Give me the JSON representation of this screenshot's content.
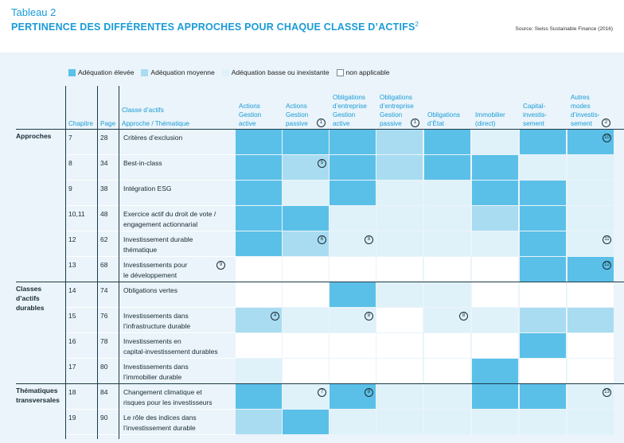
{
  "header": {
    "title": "Tableau 2",
    "subtitle": "PERTINENCE DES DIFFÉRENTES APPROCHES POUR CHAQUE CLASSE D’ACTIFS",
    "subtitle_note": "2",
    "source": "Source: Swiss Sustainable Finance (2016)"
  },
  "legend": [
    {
      "label": "Adéquation élevée",
      "color": "#5bc0e8"
    },
    {
      "label": "Adéquation moyenne",
      "color": "#a9dcf1"
    },
    {
      "label": "Adéquation basse ou inexistante",
      "color": "#dff1f9"
    },
    {
      "label": "non applicable",
      "color": "#ffffff"
    }
  ],
  "columns_left": {
    "chapitre": "Chapitre",
    "page": "Page",
    "classe": "Classe d’actifs",
    "approche": "Approche / Thématique"
  },
  "columns": [
    {
      "lines": [
        "Actions",
        "Gestion",
        "active"
      ],
      "note": ""
    },
    {
      "lines": [
        "Actions",
        "Gestion",
        "passive"
      ],
      "note": "1"
    },
    {
      "lines": [
        "Obligations",
        "d’entreprise",
        "Gestion",
        "active"
      ],
      "note": ""
    },
    {
      "lines": [
        "Obligations",
        "d’entreprise",
        "Gestion",
        "passive"
      ],
      "note": "1"
    },
    {
      "lines": [
        "Obligations",
        "d’État"
      ],
      "note": ""
    },
    {
      "lines": [
        "Immobilier",
        "(direct)"
      ],
      "note": ""
    },
    {
      "lines": [
        "Capital-",
        "investis-",
        "sement"
      ],
      "note": ""
    },
    {
      "lines": [
        "Autres",
        "modes",
        "d’investis-",
        "sement"
      ],
      "note": "2"
    }
  ],
  "sections": [
    {
      "label": [
        "Approches"
      ],
      "rows": [
        0,
        1,
        2,
        3,
        4,
        5
      ]
    },
    {
      "label": [
        "Classes",
        "d’actifs",
        "durables"
      ],
      "rows": [
        6,
        7,
        8,
        9
      ]
    },
    {
      "label": [
        "Thématiques",
        "transversales"
      ],
      "rows": [
        10,
        11
      ]
    }
  ],
  "rows": [
    {
      "chapitre": "7",
      "page": "28",
      "lines": [
        "Critères d’exclusion"
      ],
      "note": "",
      "cells": [
        "H",
        "H",
        "H",
        "M",
        "H",
        "L",
        "H",
        "H"
      ],
      "cell_notes": {
        "7": "10"
      }
    },
    {
      "chapitre": "8",
      "page": "34",
      "lines": [
        "Best-in-class"
      ],
      "note": "",
      "cells": [
        "H",
        "M",
        "H",
        "M",
        "H",
        "H",
        "L",
        "L"
      ],
      "cell_notes": {
        "1": "5"
      }
    },
    {
      "chapitre": "9",
      "page": "38",
      "lines": [
        "Intégration ESG"
      ],
      "note": "",
      "cells": [
        "H",
        "L",
        "H",
        "L",
        "L",
        "H",
        "H",
        "L"
      ],
      "cell_notes": {}
    },
    {
      "chapitre": "10,11",
      "page": "48",
      "lines": [
        "Exercice actif du droit de vote /",
        "engagement actionnarial"
      ],
      "note": "",
      "cells": [
        "H",
        "H",
        "L",
        "L",
        "L",
        "M",
        "H",
        "L"
      ],
      "cell_notes": {}
    },
    {
      "chapitre": "12",
      "page": "62",
      "lines": [
        "Investissement durable",
        "thématique"
      ],
      "note": "",
      "cells": [
        "H",
        "M",
        "L",
        "L",
        "L",
        "L",
        "H",
        "L"
      ],
      "cell_notes": {
        "1": "6",
        "2": "8",
        "7": "11"
      }
    },
    {
      "chapitre": "13",
      "page": "68",
      "lines": [
        "Investissements pour",
        "le développement"
      ],
      "note": "9",
      "cells": [
        "N",
        "N",
        "N",
        "N",
        "N",
        "N",
        "H",
        "H"
      ],
      "cell_notes": {
        "7": "12"
      }
    },
    {
      "chapitre": "14",
      "page": "74",
      "lines": [
        "Obligations vertes"
      ],
      "note": "",
      "cells": [
        "N",
        "N",
        "H",
        "L",
        "L",
        "N",
        "N",
        "N"
      ],
      "cell_notes": {}
    },
    {
      "chapitre": "15",
      "page": "76",
      "lines": [
        "Investissements dans",
        "l’infrastructure durable"
      ],
      "note": "",
      "cells": [
        "M",
        "L",
        "L",
        "N",
        "L",
        "L",
        "M",
        "M"
      ],
      "cell_notes": {
        "0": "4",
        "2": "8",
        "4": "8"
      }
    },
    {
      "chapitre": "16",
      "page": "78",
      "lines": [
        "Investissements en",
        "capital-investissement durables"
      ],
      "note": "",
      "cells": [
        "N",
        "N",
        "N",
        "N",
        "N",
        "N",
        "H",
        "N"
      ],
      "cell_notes": {}
    },
    {
      "chapitre": "17",
      "page": "80",
      "lines": [
        "Investissements dans",
        "l’immobilier durable"
      ],
      "note": "",
      "cells": [
        "L",
        "N",
        "N",
        "N",
        "N",
        "H",
        "N",
        "N"
      ],
      "cell_notes": {}
    },
    {
      "chapitre": "18",
      "page": "84",
      "lines": [
        "Changement climatique et",
        "risques pour les investisseurs"
      ],
      "note": "",
      "cells": [
        "H",
        "L",
        "H",
        "L",
        "L",
        "H",
        "H",
        "L"
      ],
      "cell_notes": {
        "1": "7",
        "2": "9",
        "7": "13"
      }
    },
    {
      "chapitre": "19",
      "page": "90",
      "lines": [
        "Le rôle des indices dans",
        "l’investissement durable"
      ],
      "note": "",
      "cells": [
        "M",
        "H",
        "L",
        "L",
        "L",
        "L",
        "L",
        "L"
      ],
      "cell_notes": {}
    }
  ]
}
